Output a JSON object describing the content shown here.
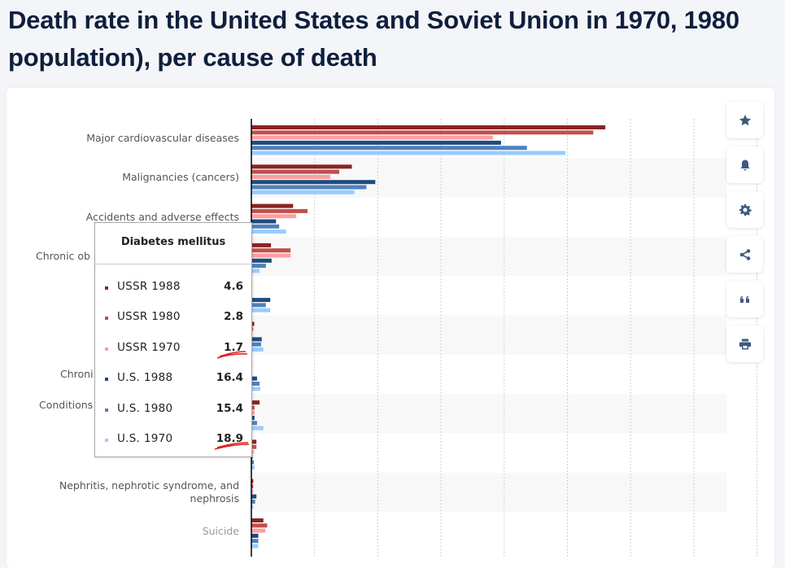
{
  "title": {
    "line1": "Death rate in the United States and Soviet Union in 1970, 1980",
    "line2": "population), per cause of death"
  },
  "toolbar": [
    "star-icon",
    "bell-icon",
    "gear-icon",
    "share-icon",
    "quote-icon",
    "print-icon"
  ],
  "chart_data": {
    "type": "bar",
    "orientation": "horizontal",
    "xlim": [
      0,
      800
    ],
    "grid": true,
    "categories": [
      "Major cardiovascular diseases",
      "Malignancies (cancers)",
      "Accidents and adverse effects",
      "Chronic ob",
      "",
      "Diabetes mellitus",
      "Chroni",
      "Conditions",
      "",
      "Nephritis, nephrotic syndrome, and nephrosis",
      "Suicide"
    ],
    "series": [
      {
        "name": "USSR 1988",
        "color": "#8b2323",
        "values": [
          560,
          159,
          66,
          31,
          0,
          4.6,
          0,
          13,
          8,
          3,
          19
        ]
      },
      {
        "name": "USSR 1980",
        "color": "#c0504d",
        "values": [
          541,
          139,
          89,
          62,
          0,
          2.8,
          0,
          5,
          8,
          3,
          25
        ]
      },
      {
        "name": "USSR 1970",
        "color": "#ff9e9e",
        "values": [
          382,
          125,
          71,
          62,
          0,
          1.7,
          0,
          5,
          4,
          3,
          22
        ]
      },
      {
        "name": "U.S. 1988",
        "color": "#1f4b7f",
        "values": [
          395,
          196,
          39,
          32,
          30,
          16.4,
          9,
          5,
          2,
          8,
          11
        ]
      },
      {
        "name": "U.S. 1980",
        "color": "#4f81bd",
        "values": [
          436,
          182,
          44,
          23,
          23,
          15.4,
          13,
          9,
          4,
          6,
          11
        ]
      },
      {
        "name": "U.S. 1970",
        "color": "#99ccff",
        "values": [
          497,
          163,
          55,
          13,
          30,
          18.9,
          14,
          19,
          5,
          3,
          11
        ]
      }
    ]
  },
  "tooltip": {
    "title": "Diabetes mellitus",
    "rows": [
      {
        "name": "USSR 1988",
        "value": "4.6"
      },
      {
        "name": "USSR 1980",
        "value": "2.8"
      },
      {
        "name": "USSR 1970",
        "value": "1.7"
      },
      {
        "name": "U.S. 1988",
        "value": "16.4"
      },
      {
        "name": "U.S. 1980",
        "value": "15.4"
      },
      {
        "name": "U.S. 1970",
        "value": "18.9"
      }
    ]
  }
}
